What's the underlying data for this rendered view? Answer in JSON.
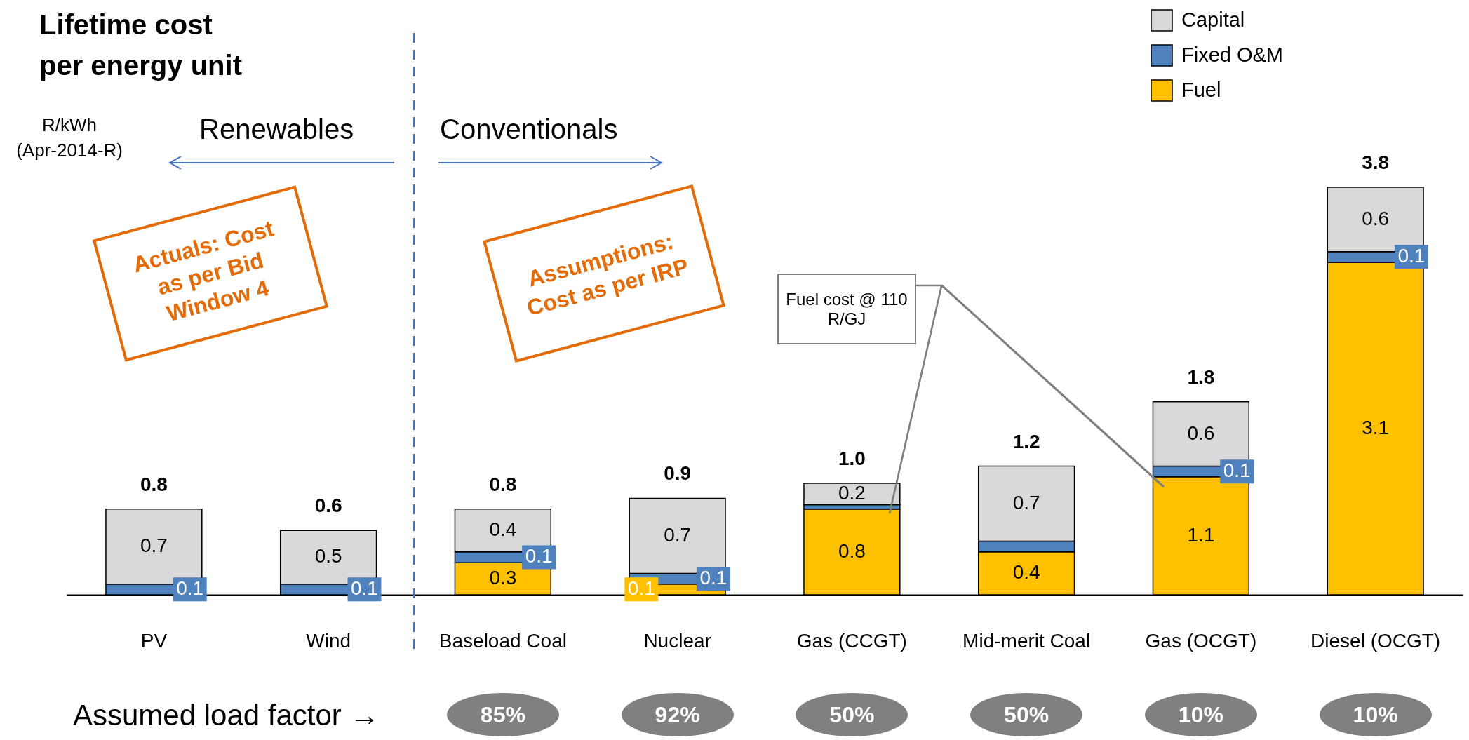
{
  "chart_data": {
    "type": "bar",
    "title": "Lifetime cost per energy unit",
    "ylabel": "R/kWh (Apr-2014-R)",
    "categories": [
      "PV",
      "Wind",
      "Baseload Coal",
      "Nuclear",
      "Gas (CCGT)",
      "Mid-merit Coal",
      "Gas (OCGT)",
      "Diesel (OCGT)"
    ],
    "stacked": true,
    "legend": "top right",
    "tick_labels": "x",
    "series": [
      {
        "name": "Fuel",
        "color": "#ffc000",
        "values": [
          null,
          null,
          0.3,
          0.1,
          0.8,
          0.4,
          1.1,
          3.1
        ],
        "value_labels": [
          null,
          null,
          "0.3",
          "0.1",
          "0.8",
          "0.4",
          "1.1",
          "3.1"
        ]
      },
      {
        "name": "Fixed O&M",
        "color": "#4f81bd",
        "values": [
          0.1,
          0.1,
          0.1,
          0.1,
          0.04,
          0.1,
          0.1,
          0.1
        ],
        "value_labels": [
          "0.1",
          "0.1",
          "0.1",
          "0.1",
          null,
          null,
          "0.1",
          "0.1"
        ]
      },
      {
        "name": "Capital",
        "color": "#d9d9d9",
        "values": [
          0.7,
          0.5,
          0.4,
          0.7,
          0.2,
          0.7,
          0.6,
          0.6
        ],
        "value_labels": [
          "0.7",
          "0.5",
          "0.4",
          "0.7",
          "0.2",
          "0.7",
          "0.6",
          "0.6"
        ]
      }
    ],
    "totals": [
      "0.8",
      "0.6",
      "0.8",
      "0.9",
      "1.0",
      "1.2",
      "1.8",
      "3.8"
    ],
    "annotations": [
      "Renewables",
      "Conventionals",
      "Actuals: Cost as per Bid Window 4",
      "Assumptions: Cost as per IRP",
      "Fuel cost @ 110 R/GJ",
      "Assumed load factor →",
      "85%",
      "92%",
      "50%",
      "50%",
      "10%",
      "10%"
    ]
  }
}
